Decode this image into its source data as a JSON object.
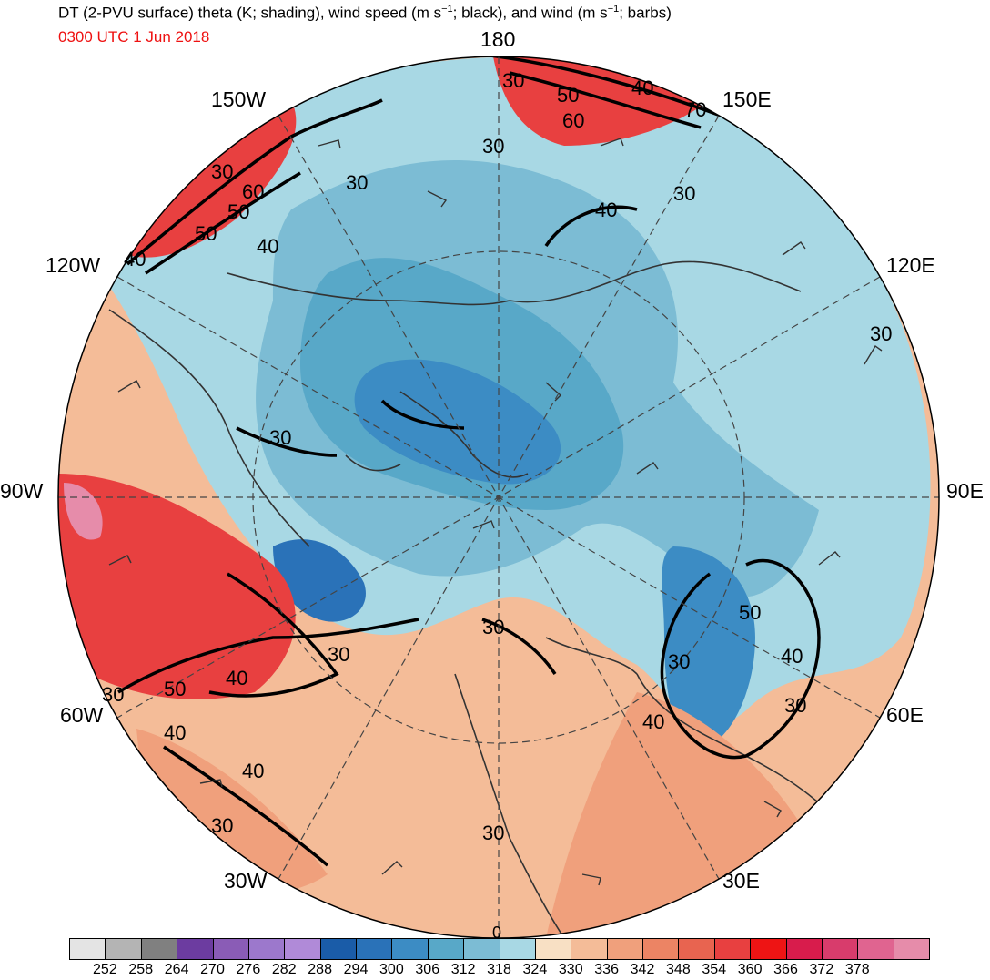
{
  "header": {
    "title_main": "DT (2-PVU surface) theta (K; shading), wind speed (m s",
    "title_sup1": "−1",
    "title_mid": "; black), and wind (m s",
    "title_sup2": "−1",
    "title_end": "; barbs)",
    "valid_time": "0300 UTC 1 Jun 2018"
  },
  "longitude_labels": [
    "180",
    "150E",
    "120E",
    "90E",
    "60E",
    "30E",
    "0",
    "30W",
    "60W",
    "90W",
    "120W",
    "150W"
  ],
  "contour_labels": [
    "30",
    "40",
    "50",
    "60",
    "70",
    "40",
    "30",
    "50",
    "40",
    "30",
    "40",
    "50",
    "30",
    "40",
    "30",
    "30",
    "30",
    "30",
    "30",
    "30",
    "40",
    "50",
    "30",
    "40",
    "40",
    "50",
    "60",
    "30",
    "40",
    "30",
    "30"
  ],
  "colorbar": {
    "colors": [
      "#e4e4e4",
      "#b4b4b4",
      "#808080",
      "#6c3ca0",
      "#8a5cb6",
      "#9c78cc",
      "#b08ad8",
      "#1a5ca8",
      "#2a72b8",
      "#3c8cc4",
      "#58a8c8",
      "#7cbcd4",
      "#a8d8e4",
      "#f8e0c4",
      "#f4bc98",
      "#f0a07c",
      "#ec8464",
      "#e86450",
      "#e84040",
      "#ee1414",
      "#d81c4c",
      "#d83c6c",
      "#e06490",
      "#e68caa"
    ],
    "labels": [
      "252",
      "258",
      "264",
      "270",
      "276",
      "282",
      "288",
      "294",
      "300",
      "306",
      "312",
      "318",
      "324",
      "330",
      "336",
      "342",
      "348",
      "354",
      "360",
      "366",
      "372",
      "378"
    ]
  },
  "colors": {
    "cold_core": "#3c8cc4",
    "cool": "#7cbcd4",
    "warm": "#f4bc98",
    "hot": "#e84040",
    "contour": "#000000",
    "coast": "#333333"
  }
}
